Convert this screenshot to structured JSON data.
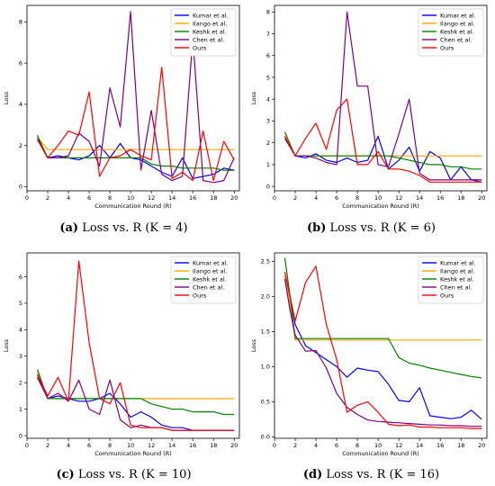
{
  "figure": {
    "captions": [
      {
        "tag": "(a)",
        "text": " Loss vs. R (K = 4)"
      },
      {
        "tag": "(b)",
        "text": " Loss vs. R (K = 6)"
      },
      {
        "tag": "(c)",
        "text": " Loss vs. R (K = 10)"
      },
      {
        "tag": "(d)",
        "text": " Loss vs. R (K = 16)"
      }
    ]
  },
  "chart_data": [
    {
      "type": "line",
      "xlabel": "Communication Round (R)",
      "ylabel": "Loss",
      "xlim": [
        0,
        20.5
      ],
      "ylim": [
        -0.2,
        8.8
      ],
      "xticks": [
        0,
        2,
        4,
        6,
        8,
        10,
        12,
        14,
        16,
        18,
        20
      ],
      "yticks": [
        0,
        2,
        4,
        6,
        8
      ],
      "x": [
        1,
        2,
        3,
        4,
        5,
        6,
        7,
        8,
        9,
        10,
        11,
        12,
        13,
        14,
        15,
        16,
        17,
        18,
        19,
        20
      ],
      "legend_position": "top-right",
      "series": [
        {
          "name": "Kumar et al.",
          "color": "#0000ff",
          "values": [
            2.4,
            1.4,
            1.5,
            1.4,
            1.3,
            1.5,
            2.0,
            1.4,
            2.1,
            1.4,
            1.3,
            1.0,
            0.7,
            0.5,
            1.4,
            0.4,
            0.5,
            0.6,
            0.9,
            0.8
          ]
        },
        {
          "name": "Ilango et al.",
          "color": "#ffa500",
          "values": [
            2.4,
            1.8,
            1.8,
            1.8,
            1.8,
            1.8,
            1.8,
            1.8,
            1.8,
            1.8,
            1.8,
            1.8,
            1.8,
            1.8,
            1.8,
            1.8,
            1.8,
            1.8,
            1.8,
            1.8
          ]
        },
        {
          "name": "Keshk et al.",
          "color": "#008000",
          "values": [
            2.5,
            1.4,
            1.4,
            1.4,
            1.4,
            1.4,
            1.4,
            1.4,
            1.4,
            1.4,
            1.4,
            1.1,
            1.0,
            1.0,
            0.9,
            0.9,
            0.9,
            0.9,
            0.8,
            0.8
          ]
        },
        {
          "name": "Chen et al.",
          "color": "#800080",
          "values": [
            2.3,
            1.4,
            1.4,
            1.5,
            2.6,
            2.2,
            1.0,
            4.8,
            2.9,
            8.5,
            0.8,
            3.7,
            0.6,
            0.3,
            0.5,
            7.2,
            0.3,
            0.2,
            0.3,
            1.4
          ]
        },
        {
          "name": "Ours",
          "color": "#ff0000",
          "values": [
            2.3,
            1.4,
            2.0,
            2.7,
            2.5,
            4.6,
            0.5,
            1.4,
            1.5,
            1.8,
            1.5,
            1.3,
            5.8,
            0.4,
            0.7,
            0.3,
            2.7,
            0.3,
            2.2,
            1.3
          ]
        }
      ]
    },
    {
      "type": "line",
      "xlabel": "Communication Round (R)",
      "ylabel": "Loss",
      "xlim": [
        0,
        20.5
      ],
      "ylim": [
        -0.2,
        8.3
      ],
      "xticks": [
        0,
        2,
        4,
        6,
        8,
        10,
        12,
        14,
        16,
        18,
        20
      ],
      "yticks": [
        0,
        1,
        2,
        3,
        4,
        5,
        6,
        7,
        8
      ],
      "x": [
        1,
        2,
        3,
        4,
        5,
        6,
        7,
        8,
        9,
        10,
        11,
        12,
        13,
        14,
        15,
        16,
        17,
        18,
        19,
        20
      ],
      "legend_position": "top-right",
      "series": [
        {
          "name": "Kumar et al.",
          "color": "#0000ff",
          "values": [
            2.3,
            1.4,
            1.3,
            1.5,
            1.2,
            1.1,
            1.3,
            1.1,
            1.2,
            2.3,
            0.8,
            1.2,
            1.8,
            0.7,
            1.6,
            1.3,
            0.3,
            0.9,
            0.3,
            0.3
          ]
        },
        {
          "name": "Ilango et al.",
          "color": "#ffa500",
          "values": [
            2.3,
            1.4,
            1.4,
            1.4,
            1.4,
            1.4,
            1.4,
            1.4,
            1.4,
            1.4,
            1.4,
            1.4,
            1.4,
            1.4,
            1.4,
            1.4,
            1.4,
            1.4,
            1.4,
            1.4
          ]
        },
        {
          "name": "Keshk et al.",
          "color": "#008000",
          "values": [
            2.5,
            1.4,
            1.4,
            1.4,
            1.4,
            1.4,
            1.4,
            1.4,
            1.4,
            1.4,
            1.4,
            1.3,
            1.2,
            1.1,
            1.0,
            1.0,
            0.9,
            0.9,
            0.8,
            0.8
          ]
        },
        {
          "name": "Chen et al.",
          "color": "#800080",
          "values": [
            2.2,
            1.4,
            1.4,
            1.3,
            1.1,
            1.0,
            8.0,
            4.6,
            4.6,
            1.0,
            0.9,
            2.4,
            4.0,
            0.6,
            0.3,
            0.3,
            0.3,
            0.3,
            0.3,
            0.2
          ]
        },
        {
          "name": "Ours",
          "color": "#ff0000",
          "values": [
            2.3,
            1.4,
            2.2,
            2.9,
            1.7,
            3.5,
            4.0,
            1.0,
            1.0,
            1.6,
            0.8,
            0.8,
            0.7,
            0.5,
            0.2,
            0.2,
            0.2,
            0.2,
            0.2,
            0.2
          ]
        }
      ]
    },
    {
      "type": "line",
      "xlabel": "Communication Round (R)",
      "ylabel": "Loss",
      "xlim": [
        0,
        20.5
      ],
      "ylim": [
        -0.1,
        6.9
      ],
      "xticks": [
        0,
        2,
        4,
        6,
        8,
        10,
        12,
        14,
        16,
        18,
        20
      ],
      "yticks": [
        0,
        1,
        2,
        3,
        4,
        5,
        6
      ],
      "x": [
        1,
        2,
        3,
        4,
        5,
        6,
        7,
        8,
        9,
        10,
        11,
        12,
        13,
        14,
        15,
        16,
        17,
        18,
        19,
        20
      ],
      "legend_position": "top-right",
      "series": [
        {
          "name": "Kumar et al.",
          "color": "#0000ff",
          "values": [
            2.3,
            1.4,
            1.5,
            1.4,
            1.3,
            1.3,
            1.4,
            1.6,
            1.2,
            0.7,
            0.9,
            0.7,
            0.4,
            0.3,
            0.3,
            0.2,
            0.2,
            0.2,
            0.2,
            0.2
          ]
        },
        {
          "name": "Ilango et al.",
          "color": "#ffa500",
          "values": [
            2.4,
            1.4,
            1.4,
            1.4,
            1.4,
            1.4,
            1.4,
            1.4,
            1.4,
            1.4,
            1.4,
            1.4,
            1.4,
            1.4,
            1.4,
            1.4,
            1.4,
            1.4,
            1.4,
            1.4
          ]
        },
        {
          "name": "Keshk et al.",
          "color": "#008000",
          "values": [
            2.5,
            1.4,
            1.4,
            1.4,
            1.4,
            1.4,
            1.4,
            1.4,
            1.4,
            1.4,
            1.4,
            1.2,
            1.1,
            1.0,
            1.0,
            0.9,
            0.9,
            0.9,
            0.8,
            0.8
          ]
        },
        {
          "name": "Chen et al.",
          "color": "#800080",
          "values": [
            2.2,
            1.4,
            1.6,
            1.3,
            2.1,
            1.0,
            0.8,
            2.1,
            0.6,
            0.3,
            0.4,
            0.3,
            0.3,
            0.2,
            0.2,
            0.2,
            0.2,
            0.2,
            0.2,
            0.2
          ]
        },
        {
          "name": "Ours",
          "color": "#ff0000",
          "values": [
            2.3,
            1.5,
            2.2,
            1.3,
            6.6,
            3.5,
            1.4,
            1.2,
            2.0,
            0.4,
            0.3,
            0.3,
            0.3,
            0.2,
            0.2,
            0.2,
            0.2,
            0.2,
            0.2,
            0.2
          ]
        }
      ]
    },
    {
      "type": "line",
      "xlabel": "Communication Round (R)",
      "ylabel": "Loss",
      "xlim": [
        0,
        20.5
      ],
      "ylim": [
        -0.02,
        2.62
      ],
      "xticks": [
        0,
        2,
        4,
        6,
        8,
        10,
        12,
        14,
        16,
        18,
        20
      ],
      "yticks": [
        0.0,
        0.5,
        1.0,
        1.5,
        2.0,
        2.5
      ],
      "ytick_labels": [
        "0.0",
        "0.5",
        "1.0",
        "1.5",
        "2.0",
        "2.5"
      ],
      "x": [
        1,
        1.5,
        2,
        3,
        4,
        5,
        6,
        7,
        8,
        9,
        10,
        11,
        12,
        13,
        14,
        15,
        16,
        17,
        18,
        19,
        20
      ],
      "legend_position": "top-right",
      "series": [
        {
          "name": "Kumar et al.",
          "color": "#0000ff",
          "values": [
            2.3,
            2.0,
            1.6,
            1.3,
            1.2,
            1.1,
            1.0,
            0.85,
            0.98,
            0.95,
            0.93,
            0.75,
            0.52,
            0.5,
            0.7,
            0.3,
            0.28,
            0.26,
            0.28,
            0.38,
            0.25
          ]
        },
        {
          "name": "Ilango et al.",
          "color": "#ffa500",
          "values": [
            2.3,
            1.9,
            1.38,
            1.38,
            1.38,
            1.38,
            1.38,
            1.38,
            1.38,
            1.38,
            1.38,
            1.38,
            1.38,
            1.38,
            1.38,
            1.38,
            1.38,
            1.38,
            1.38,
            1.38,
            1.38
          ]
        },
        {
          "name": "Keshk et al.",
          "color": "#008000",
          "values": [
            2.55,
            2.0,
            1.4,
            1.4,
            1.4,
            1.4,
            1.4,
            1.4,
            1.4,
            1.4,
            1.4,
            1.4,
            1.13,
            1.05,
            1.02,
            0.98,
            0.95,
            0.92,
            0.89,
            0.86,
            0.84
          ]
        },
        {
          "name": "Chen et al.",
          "color": "#800080",
          "values": [
            2.25,
            1.8,
            1.45,
            1.22,
            1.23,
            0.98,
            0.62,
            0.42,
            0.32,
            0.24,
            0.22,
            0.21,
            0.2,
            0.19,
            0.18,
            0.17,
            0.17,
            0.16,
            0.16,
            0.15,
            0.15
          ]
        },
        {
          "name": "Ours",
          "color": "#ff0000",
          "values": [
            2.35,
            2.0,
            1.65,
            2.2,
            2.43,
            1.6,
            1.1,
            0.35,
            0.45,
            0.5,
            0.35,
            0.18,
            0.16,
            0.17,
            0.14,
            0.14,
            0.13,
            0.13,
            0.13,
            0.12,
            0.12
          ]
        }
      ]
    }
  ]
}
